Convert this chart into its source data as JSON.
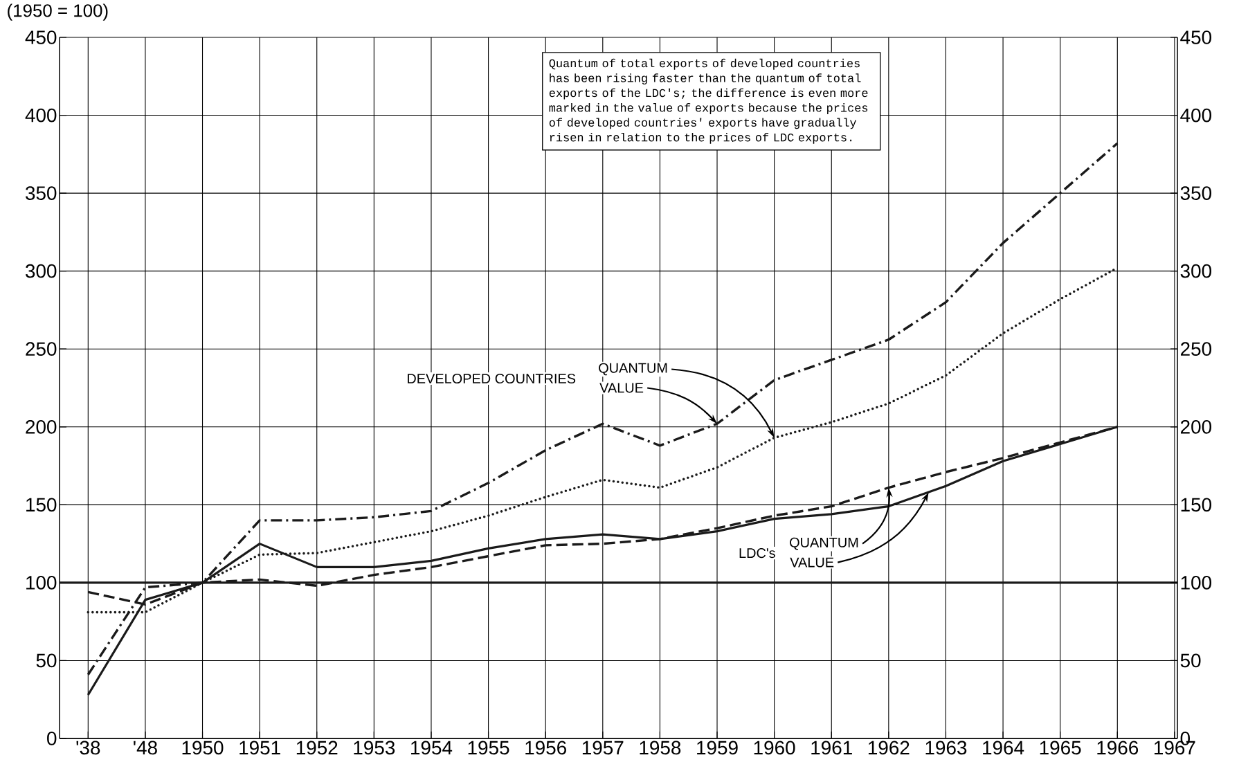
{
  "chart_data": {
    "type": "line",
    "ylabel": "(1950 = 100)",
    "categories": [
      "'38",
      "'48",
      "1950",
      "1951",
      "1952",
      "1953",
      "1954",
      "1955",
      "1956",
      "1957",
      "1958",
      "1959",
      "1960",
      "1961",
      "1962",
      "1963",
      "1964",
      "1965",
      "1966",
      "1967"
    ],
    "series": [
      {
        "color": "#1a1a1a",
        "line_style": "dashdot",
        "values": [
          41,
          97,
          100,
          140,
          140,
          142,
          146,
          164,
          185,
          202,
          188,
          202,
          230,
          243,
          256,
          280,
          318,
          350,
          382,
          null
        ]
      },
      {
        "color": "#1a1a1a",
        "line_style": "dotted",
        "values": [
          81,
          81,
          100,
          118,
          119,
          126,
          133,
          143,
          155,
          166,
          161,
          174,
          193,
          203,
          215,
          233,
          260,
          282,
          302,
          null
        ]
      },
      {
        "color": "#1a1a1a",
        "line_style": "solid",
        "values": [
          28,
          89,
          100,
          125,
          110,
          110,
          114,
          122,
          128,
          131,
          128,
          133,
          141,
          144,
          149,
          162,
          178,
          189,
          200,
          null
        ]
      },
      {
        "color": "#1a1a1a",
        "line_style": "dashed",
        "values": [
          94,
          86,
          100,
          102,
          98,
          105,
          110,
          117,
          124,
          125,
          128,
          135,
          143,
          149,
          161,
          171,
          180,
          190,
          200,
          null
        ]
      }
    ],
    "ylim": [
      0,
      450
    ],
    "yticks": [
      0,
      50,
      100,
      150,
      200,
      250,
      300,
      350,
      400,
      450
    ],
    "y2lim": [
      0,
      450
    ],
    "y2ticks": [
      0,
      50,
      100,
      150,
      200,
      250,
      300,
      350,
      400,
      450
    ],
    "grid": true,
    "ref_lines": [
      {
        "axis": "y",
        "value": 100,
        "color": "#1a1a1a"
      }
    ],
    "annotations": [
      "Quantum of total exports of developed countries has been rising faster than the quantum of total exports of the LDC's; the difference is even more marked in the value of exports because the prices of developed countries' exports have gradually risen in relation to the prices of LDC exports.",
      "DEVELOPED COUNTRIES",
      {
        "text": "QUANTUM",
        "x": "1960",
        "y": 193
      },
      {
        "text": "VALUE",
        "x": "1959",
        "y": 202
      },
      "LDC's",
      {
        "text": "QUANTUM",
        "x": "1962",
        "y": 161
      },
      "VALUE"
    ]
  }
}
